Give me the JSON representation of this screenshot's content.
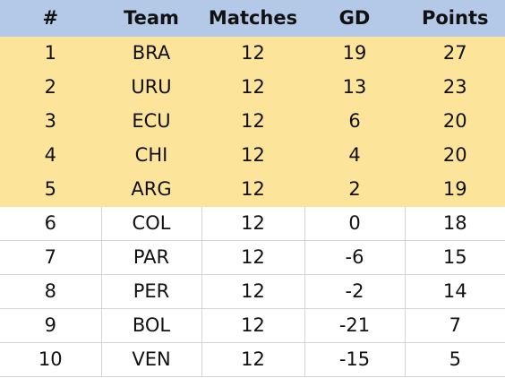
{
  "table": {
    "header": [
      "#",
      "Team",
      "Matches",
      "GD",
      "Points"
    ],
    "rows": [
      [
        1,
        "BRA",
        12,
        19,
        27
      ],
      [
        2,
        "URU",
        12,
        13,
        23
      ],
      [
        3,
        "ECU",
        12,
        6,
        20
      ],
      [
        4,
        "CHI",
        12,
        4,
        20
      ],
      [
        5,
        "ARG",
        12,
        2,
        19
      ],
      [
        6,
        "COL",
        12,
        0,
        18
      ],
      [
        7,
        "PAR",
        12,
        -6,
        15
      ],
      [
        8,
        "PER",
        12,
        -2,
        14
      ],
      [
        9,
        "BOL",
        12,
        -21,
        7
      ],
      [
        10,
        "VEN",
        12,
        -15,
        5
      ]
    ]
  }
}
